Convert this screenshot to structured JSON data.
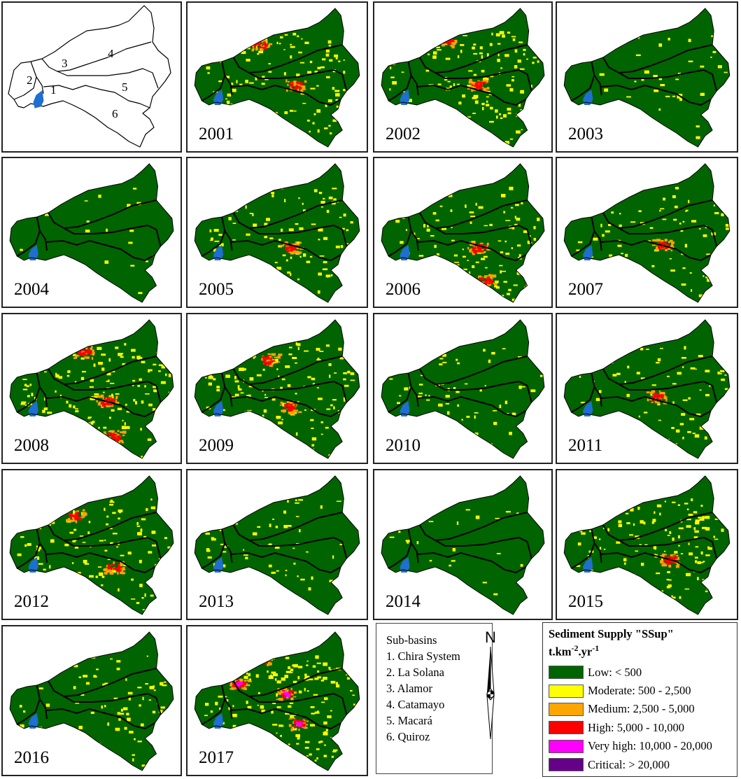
{
  "key_map": {
    "labels": [
      "1",
      "2",
      "3",
      "4",
      "5",
      "6"
    ]
  },
  "panels": [
    {
      "year": "2001",
      "intensity": 0.6,
      "hot": [
        [
          0.4,
          0.28
        ],
        [
          0.6,
          0.55
        ]
      ]
    },
    {
      "year": "2002",
      "intensity": 0.65,
      "hot": [
        [
          0.4,
          0.25
        ],
        [
          0.58,
          0.55
        ]
      ]
    },
    {
      "year": "2003",
      "intensity": 0.18,
      "hot": []
    },
    {
      "year": "2004",
      "intensity": 0.08,
      "hot": []
    },
    {
      "year": "2005",
      "intensity": 0.5,
      "hot": [
        [
          0.57,
          0.6
        ]
      ]
    },
    {
      "year": "2006",
      "intensity": 0.55,
      "hot": [
        [
          0.58,
          0.6
        ],
        [
          0.62,
          0.82
        ]
      ]
    },
    {
      "year": "2007",
      "intensity": 0.4,
      "hot": [
        [
          0.58,
          0.58
        ]
      ]
    },
    {
      "year": "2008",
      "intensity": 0.75,
      "hot": [
        [
          0.45,
          0.25
        ],
        [
          0.58,
          0.58
        ],
        [
          0.62,
          0.82
        ]
      ]
    },
    {
      "year": "2009",
      "intensity": 0.65,
      "hot": [
        [
          0.45,
          0.3
        ],
        [
          0.57,
          0.62
        ]
      ]
    },
    {
      "year": "2010",
      "intensity": 0.35,
      "hot": []
    },
    {
      "year": "2011",
      "intensity": 0.4,
      "hot": [
        [
          0.55,
          0.55
        ]
      ]
    },
    {
      "year": "2012",
      "intensity": 0.6,
      "hot": [
        [
          0.4,
          0.3
        ],
        [
          0.62,
          0.65
        ]
      ]
    },
    {
      "year": "2013",
      "intensity": 0.32,
      "hot": []
    },
    {
      "year": "2014",
      "intensity": 0.15,
      "hot": []
    },
    {
      "year": "2015",
      "intensity": 0.7,
      "hot": [
        [
          0.4,
          0.18
        ],
        [
          0.62,
          0.6
        ]
      ]
    },
    {
      "year": "2016",
      "intensity": 0.35,
      "hot": []
    },
    {
      "year": "2017",
      "intensity": 0.85,
      "hot": [
        [
          0.28,
          0.38
        ],
        [
          0.4,
          0.22
        ],
        [
          0.55,
          0.45
        ],
        [
          0.62,
          0.65
        ]
      ]
    }
  ],
  "subbasins": {
    "title": "Sub-basins",
    "items": [
      "1. Chira System",
      "2. La Solana",
      "3. Alamor",
      "4. Catamayo",
      "5. Macará",
      "6. Quiroz"
    ]
  },
  "north": {
    "label": "N"
  },
  "legend": {
    "title": "Sediment Supply \"SSup\"",
    "unit_base": "t.km",
    "unit_exp1": "-2",
    "unit_mid": ".yr",
    "unit_exp2": "-1",
    "classes": [
      {
        "label": "Low: < 500",
        "color": "#006400"
      },
      {
        "label": "Moderate: 500 - 2,500",
        "color": "#ffff00"
      },
      {
        "label": "Medium: 2,500 - 5,000",
        "color": "#ffa500"
      },
      {
        "label": "High: 5,000 - 10,000",
        "color": "#ff0000"
      },
      {
        "label": "Very high: 10,000 - 20,000",
        "color": "#ff00ff"
      },
      {
        "label": "Critical: > 20,000",
        "color": "#660088"
      }
    ]
  },
  "colors": {
    "water": "#1e6fd0",
    "boundary": "#000000"
  }
}
